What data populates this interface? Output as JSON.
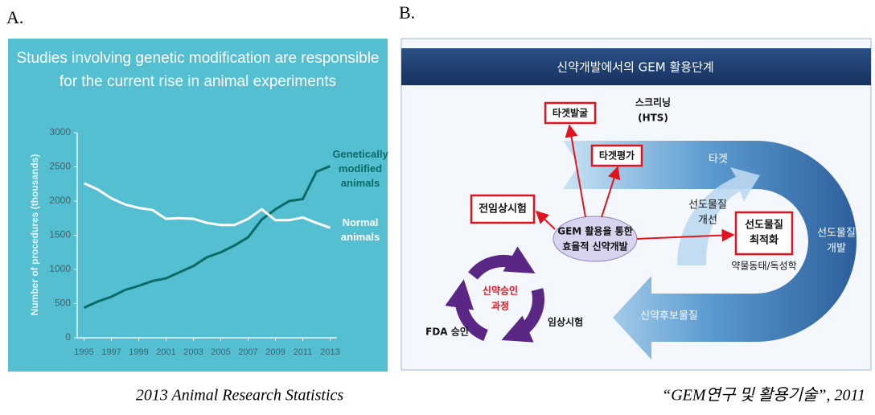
{
  "panel_a": {
    "label": "A.",
    "caption": "2013 Animal Research Statistics"
  },
  "chart_data": {
    "type": "line",
    "title": "Studies involving genetic modification are responsible for the current rise in animal experiments",
    "y_label": "Number of procedures (thousands)",
    "x": [
      1995,
      1996,
      1997,
      1998,
      1999,
      2000,
      2001,
      2002,
      2003,
      2004,
      2005,
      2006,
      2007,
      2008,
      2009,
      2010,
      2011,
      2012,
      2013
    ],
    "xlim": [
      1994.5,
      2013.5
    ],
    "xticks": [
      1995,
      1997,
      1999,
      2001,
      2003,
      2005,
      2007,
      2009,
      2011,
      2013
    ],
    "ylim": [
      0,
      3000
    ],
    "yticks": [
      0,
      500,
      1000,
      1500,
      2000,
      2500,
      3000
    ],
    "grid": false,
    "series": [
      {
        "name": "Genetically modified animals",
        "color": "#0b6b66",
        "values": [
          440,
          530,
          600,
          700,
          760,
          830,
          870,
          960,
          1050,
          1180,
          1250,
          1350,
          1470,
          1730,
          1880,
          2000,
          2030,
          2430,
          2510
        ]
      },
      {
        "name": "Normal animals",
        "color": "#ffffff",
        "values": [
          2260,
          2170,
          2040,
          1950,
          1900,
          1870,
          1740,
          1750,
          1740,
          1680,
          1650,
          1650,
          1740,
          1880,
          1720,
          1720,
          1760,
          1680,
          1610
        ]
      }
    ]
  },
  "panel_b": {
    "label": "B.",
    "caption": "“GEM연구 및 활용기술”, 2011",
    "diagram": {
      "title": "신약개발에서의 GEM 활용단계",
      "nodes": [
        {
          "lines": [
            "타겟발굴"
          ]
        },
        {
          "lines": [
            "스크리닝",
            "(HTS)"
          ]
        },
        {
          "lines": [
            "타겟평가"
          ]
        },
        {
          "lines": [
            "타겟"
          ]
        },
        {
          "lines": [
            "선도물질",
            "개선"
          ]
        },
        {
          "lines": [
            "선도물질",
            "최적화"
          ]
        },
        {
          "lines": [
            "약물동태/독성학"
          ]
        },
        {
          "lines": [
            "선도물질",
            "개발"
          ]
        },
        {
          "lines": [
            "전임상시험"
          ]
        },
        {
          "lines": [
            "GEM 활용을 통한",
            "효율적 신약개발"
          ]
        },
        {
          "lines": [
            "신약승인",
            "과정"
          ]
        },
        {
          "lines": [
            "FDA 승인"
          ]
        },
        {
          "lines": [
            "임상시험"
          ]
        },
        {
          "lines": [
            "신약후보물질"
          ]
        }
      ]
    }
  }
}
